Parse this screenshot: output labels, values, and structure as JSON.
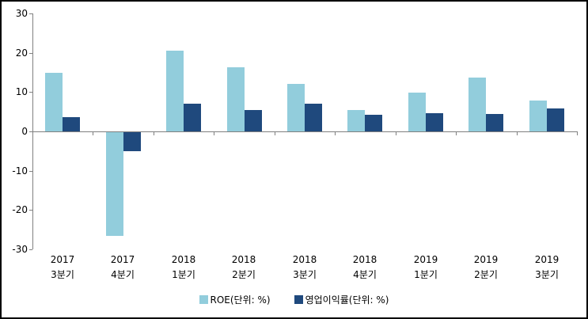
{
  "chart_data": {
    "type": "bar",
    "title": "",
    "categories": [
      {
        "year": "2017",
        "quarter": "3분기"
      },
      {
        "year": "2017",
        "quarter": "4분기"
      },
      {
        "year": "2018",
        "quarter": "1분기"
      },
      {
        "year": "2018",
        "quarter": "2분기"
      },
      {
        "year": "2018",
        "quarter": "3분기"
      },
      {
        "year": "2018",
        "quarter": "4분기"
      },
      {
        "year": "2019",
        "quarter": "1분기"
      },
      {
        "year": "2019",
        "quarter": "2분기"
      },
      {
        "year": "2019",
        "quarter": "3분기"
      }
    ],
    "series": [
      {
        "name": "ROE(단위: %)",
        "color": "#92CDDC",
        "values": [
          15.0,
          -26.5,
          20.5,
          16.3,
          12.0,
          5.5,
          9.8,
          13.7,
          7.8
        ]
      },
      {
        "name": "영업이익률(단위: %)",
        "color": "#1F497D",
        "values": [
          3.7,
          -5.0,
          7.0,
          5.5,
          7.0,
          4.2,
          4.6,
          4.5,
          5.8
        ]
      }
    ],
    "ylim": [
      -30,
      30
    ],
    "yticks": [
      30,
      20,
      10,
      0,
      -10,
      -20,
      -30
    ],
    "grid": false,
    "legend_position": "bottom"
  },
  "colors": {
    "axis": "#808080",
    "text": "#000000",
    "frame_border": "#000000",
    "background": "#FFFFFF",
    "series_roe": "#92CDDC",
    "series_op_margin": "#1F497D"
  }
}
